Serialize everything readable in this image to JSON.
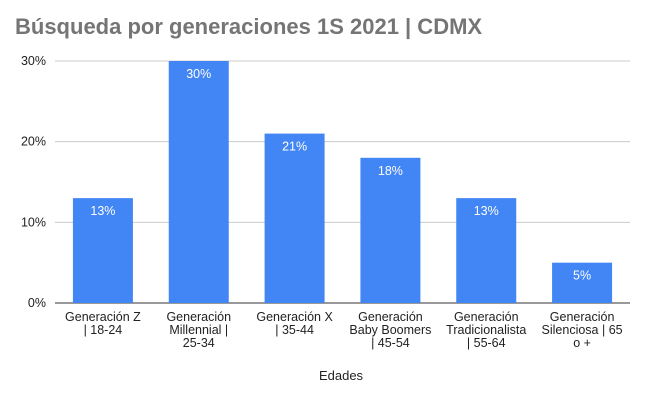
{
  "chart_data": {
    "type": "bar",
    "title": "Búsqueda por generaciones 1S 2021 | CDMX",
    "xlabel": "Edades",
    "ylabel": "",
    "ylim": [
      0,
      30
    ],
    "yticks": [
      0,
      10,
      20,
      30
    ],
    "ytick_labels": [
      "0%",
      "10%",
      "20%",
      "30%"
    ],
    "grid": true,
    "categories": [
      [
        "Generación Z",
        "| 18-24"
      ],
      [
        "Generación",
        "Millennial |",
        "25-34"
      ],
      [
        "Generación X",
        "| 35-44"
      ],
      [
        "Generación",
        "Baby Boomers",
        "| 45-54"
      ],
      [
        "Generación",
        "Tradicionalista",
        "| 55-64"
      ],
      [
        "Generación",
        "Silenciosa | 65",
        "o +"
      ]
    ],
    "values": [
      13,
      30,
      21,
      18,
      13,
      5
    ],
    "data_labels": [
      "13%",
      "30%",
      "21%",
      "18%",
      "13%",
      "5%"
    ],
    "bar_color": "#4285f4"
  }
}
